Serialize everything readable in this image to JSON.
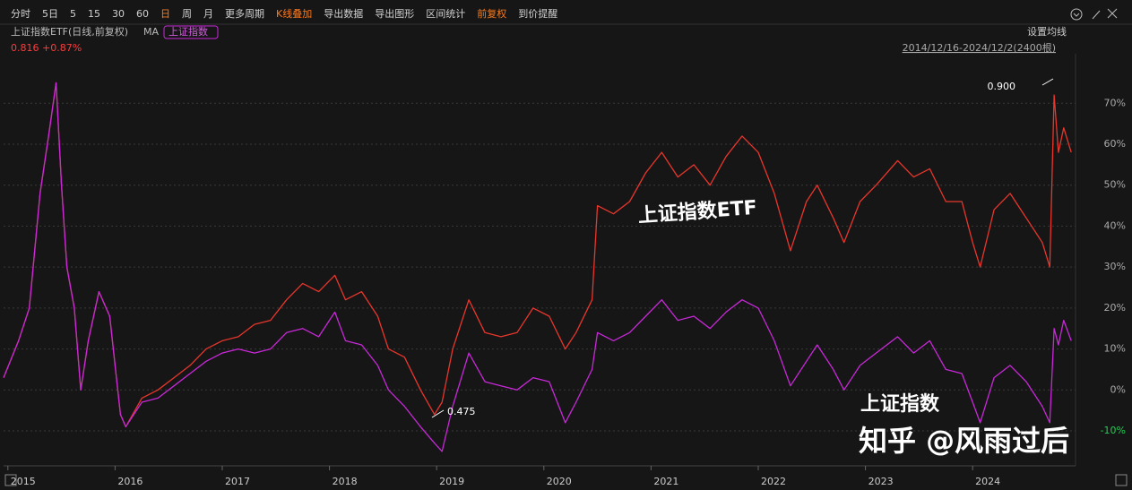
{
  "toolbar": {
    "items": [
      "分时",
      "5日",
      "5",
      "15",
      "30",
      "60",
      "日",
      "周",
      "月",
      "更多周期",
      "K线叠加",
      "导出数据",
      "导出图形",
      "区间统计",
      "前复权",
      "到价提醒"
    ],
    "active": [
      6,
      10,
      14
    ]
  },
  "header": {
    "name": "上证指数ETF(日线,前复权)",
    "ma": "MA",
    "overlay": "上证指数",
    "quote": "0.816 +0.87%",
    "ma_setting": "设置均线",
    "range": "2014/12/16-2024/12/2(2400根)"
  },
  "chart_data": {
    "type": "line",
    "x": [
      2014.96,
      2015.1,
      2015.2,
      2015.3,
      2015.38,
      2015.45,
      2015.5,
      2015.55,
      2015.62,
      2015.68,
      2015.75,
      2015.85,
      2015.95,
      2016.05,
      2016.1,
      2016.25,
      2016.4,
      2016.55,
      2016.7,
      2016.85,
      2017.0,
      2017.15,
      2017.3,
      2017.45,
      2017.6,
      2017.75,
      2017.9,
      2018.05,
      2018.15,
      2018.3,
      2018.45,
      2018.55,
      2018.7,
      2018.85,
      2018.98,
      2019.05,
      2019.15,
      2019.3,
      2019.45,
      2019.6,
      2019.75,
      2019.9,
      2020.05,
      2020.2,
      2020.3,
      2020.45,
      2020.5,
      2020.65,
      2020.8,
      2020.95,
      2021.1,
      2021.25,
      2021.4,
      2021.55,
      2021.7,
      2021.85,
      2022.0,
      2022.15,
      2022.3,
      2022.45,
      2022.55,
      2022.7,
      2022.8,
      2022.95,
      2023.1,
      2023.3,
      2023.45,
      2023.6,
      2023.75,
      2023.9,
      2024.0,
      2024.07,
      2024.2,
      2024.35,
      2024.5,
      2024.65,
      2024.72,
      2024.76,
      2024.8,
      2024.85,
      2024.92
    ],
    "series": [
      {
        "name": "上证指数ETF",
        "color": "#e8362c",
        "values": [
          3,
          12,
          20,
          48,
          62,
          75,
          50,
          30,
          20,
          0,
          12,
          24,
          18,
          -6,
          -9,
          -2,
          0,
          3,
          6,
          10,
          12,
          13,
          16,
          17,
          22,
          26,
          24,
          28,
          22,
          24,
          18,
          10,
          8,
          0,
          -6,
          -3,
          10,
          22,
          14,
          13,
          14,
          20,
          18,
          10,
          14,
          22,
          45,
          43,
          46,
          53,
          58,
          52,
          55,
          50,
          57,
          62,
          58,
          48,
          34,
          46,
          50,
          42,
          36,
          46,
          50,
          56,
          52,
          54,
          46,
          46,
          36,
          30,
          44,
          48,
          42,
          36,
          30,
          72,
          58,
          64,
          58
        ]
      },
      {
        "name": "上证指数",
        "color": "#c828d8",
        "values": [
          3,
          12,
          20,
          48,
          62,
          75,
          50,
          30,
          20,
          0,
          12,
          24,
          18,
          -6,
          -9,
          -3,
          -2,
          1,
          4,
          7,
          9,
          10,
          9,
          10,
          14,
          15,
          13,
          19,
          12,
          11,
          6,
          0,
          -4,
          -9,
          -13,
          -15,
          -4,
          9,
          2,
          1,
          0,
          3,
          2,
          -8,
          -3,
          5,
          14,
          12,
          14,
          18,
          22,
          17,
          18,
          15,
          19,
          22,
          20,
          12,
          1,
          7,
          11,
          5,
          0,
          6,
          9,
          13,
          9,
          12,
          5,
          4,
          -3,
          -8,
          3,
          6,
          2,
          -4,
          -8,
          15,
          11,
          17,
          12
        ]
      }
    ],
    "annotations": [
      "0.900",
      "0.475"
    ],
    "xlim": [
      2014.96,
      2024.96
    ],
    "xticks": [
      2015,
      2016,
      2017,
      2018,
      2019,
      2020,
      2021,
      2022,
      2023,
      2024
    ],
    "ylim": [
      -17,
      81
    ],
    "yticks": [
      {
        "value": 70,
        "label": "70%"
      },
      {
        "value": 60,
        "label": "60%"
      },
      {
        "value": 50,
        "label": "50%"
      },
      {
        "value": 40,
        "label": "40%"
      },
      {
        "value": 30,
        "label": "30%"
      },
      {
        "value": 20,
        "label": "20%"
      },
      {
        "value": 10,
        "label": "10%"
      },
      {
        "value": 0,
        "label": "0%"
      },
      {
        "value": -10,
        "label": "-10%"
      }
    ],
    "grid": true
  },
  "watermark": "知乎 @风雨过后"
}
